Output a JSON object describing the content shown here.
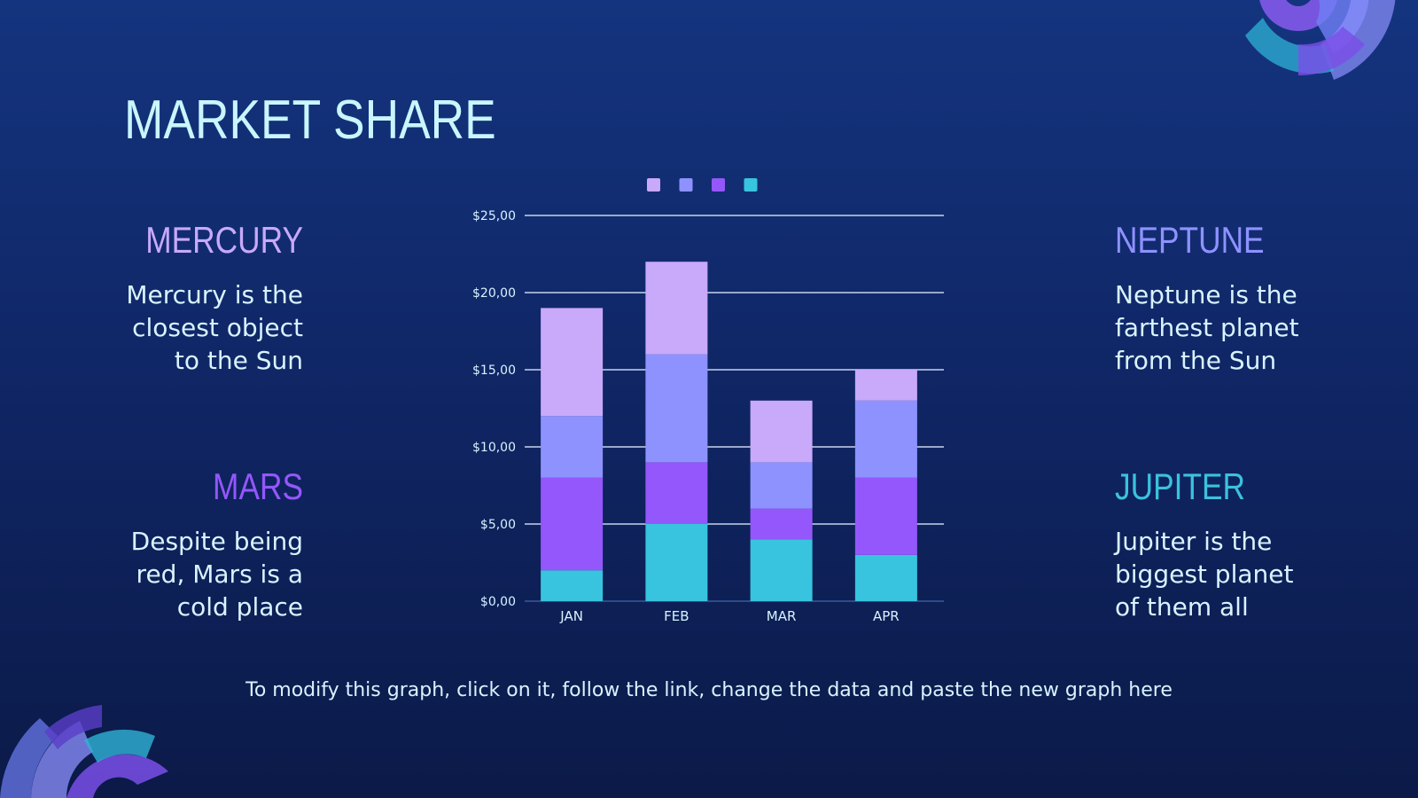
{
  "title": "MARKET SHARE",
  "left": [
    {
      "name": "MERCURY",
      "desc": [
        "Mercury is the",
        "closest object",
        "to the Sun"
      ]
    },
    {
      "name": "MARS",
      "desc": [
        "Despite being",
        "red, Mars is a",
        "cold place"
      ]
    }
  ],
  "right": [
    {
      "name": "NEPTUNE",
      "desc": [
        "Neptune is the",
        "farthest planet",
        "from the Sun"
      ]
    },
    {
      "name": "JUPITER",
      "desc": [
        "Jupiter is the",
        "biggest planet",
        "of them all"
      ]
    }
  ],
  "footer": "To modify this graph, click on it, follow the link, change the data and paste the new graph here",
  "colors": {
    "mercury": "#c8a9fa",
    "neptune": "#8e92ff",
    "mars": "#9457fb",
    "jupiter": "#38c4de",
    "gridline": "#c8d3ee",
    "tick_text": "#d8f3ff"
  },
  "chart_data": {
    "type": "bar",
    "stacked": true,
    "categories": [
      "JAN",
      "FEB",
      "MAR",
      "APR"
    ],
    "series": [
      {
        "color": "#38c4de",
        "values": [
          2,
          5,
          4,
          3
        ]
      },
      {
        "color": "#9457fb",
        "values": [
          6,
          4,
          2,
          5
        ]
      },
      {
        "color": "#8e92ff",
        "values": [
          4,
          7,
          3,
          5
        ]
      },
      {
        "color": "#c8a9fa",
        "values": [
          7,
          6,
          4,
          2
        ]
      }
    ],
    "legend_order": [
      3,
      2,
      1,
      0
    ],
    "yticks": [
      "$0,00",
      "$5,00",
      "$10,00",
      "$15,00",
      "$20,00",
      "$25,00"
    ],
    "ylim": [
      0,
      25
    ],
    "grid": true,
    "legend_position": "top"
  }
}
